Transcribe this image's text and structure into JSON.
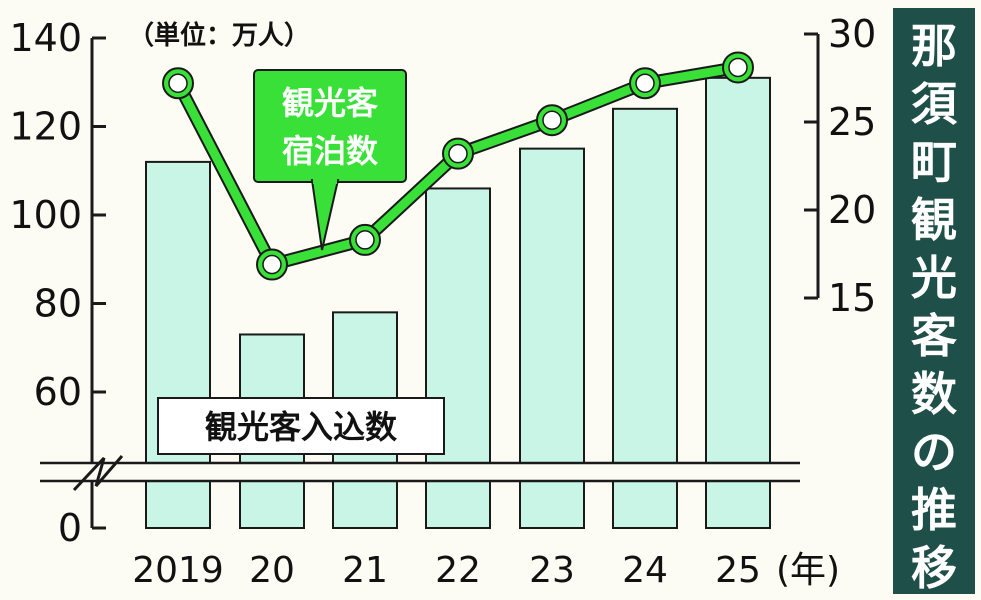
{
  "chart_data": {
    "type": "bar+line",
    "title": "那須町観光客数の推移",
    "unit_label": "（単位：万人）",
    "year_suffix": "(年)",
    "categories": [
      "2019",
      "20",
      "21",
      "22",
      "23",
      "24",
      "25"
    ],
    "bar_series": {
      "name": "観光客入込数",
      "values": [
        112,
        73,
        78,
        106,
        115,
        124,
        131
      ],
      "axis": "left",
      "color": "#c8f5e6",
      "stroke": "#1a1a1a"
    },
    "line_series": {
      "name_line1": "観光客",
      "name_line2": "宿泊数",
      "values": [
        27.2,
        16.9,
        18.3,
        23.2,
        25.1,
        27.2,
        28.1
      ],
      "axis": "right",
      "color": "#38e038",
      "stroke": "#1a1a1a"
    },
    "left_axis": {
      "ticks": [
        "0",
        "60",
        "80",
        "100",
        "120",
        "140"
      ],
      "ylim": [
        50,
        140
      ],
      "broken": true
    },
    "right_axis": {
      "ticks": [
        "15",
        "20",
        "25",
        "30"
      ],
      "ylim": [
        15,
        30
      ]
    },
    "colors": {
      "title_bg": "#1f4f49",
      "title_text": "#ffffff",
      "background": "#fcfbf4"
    }
  }
}
